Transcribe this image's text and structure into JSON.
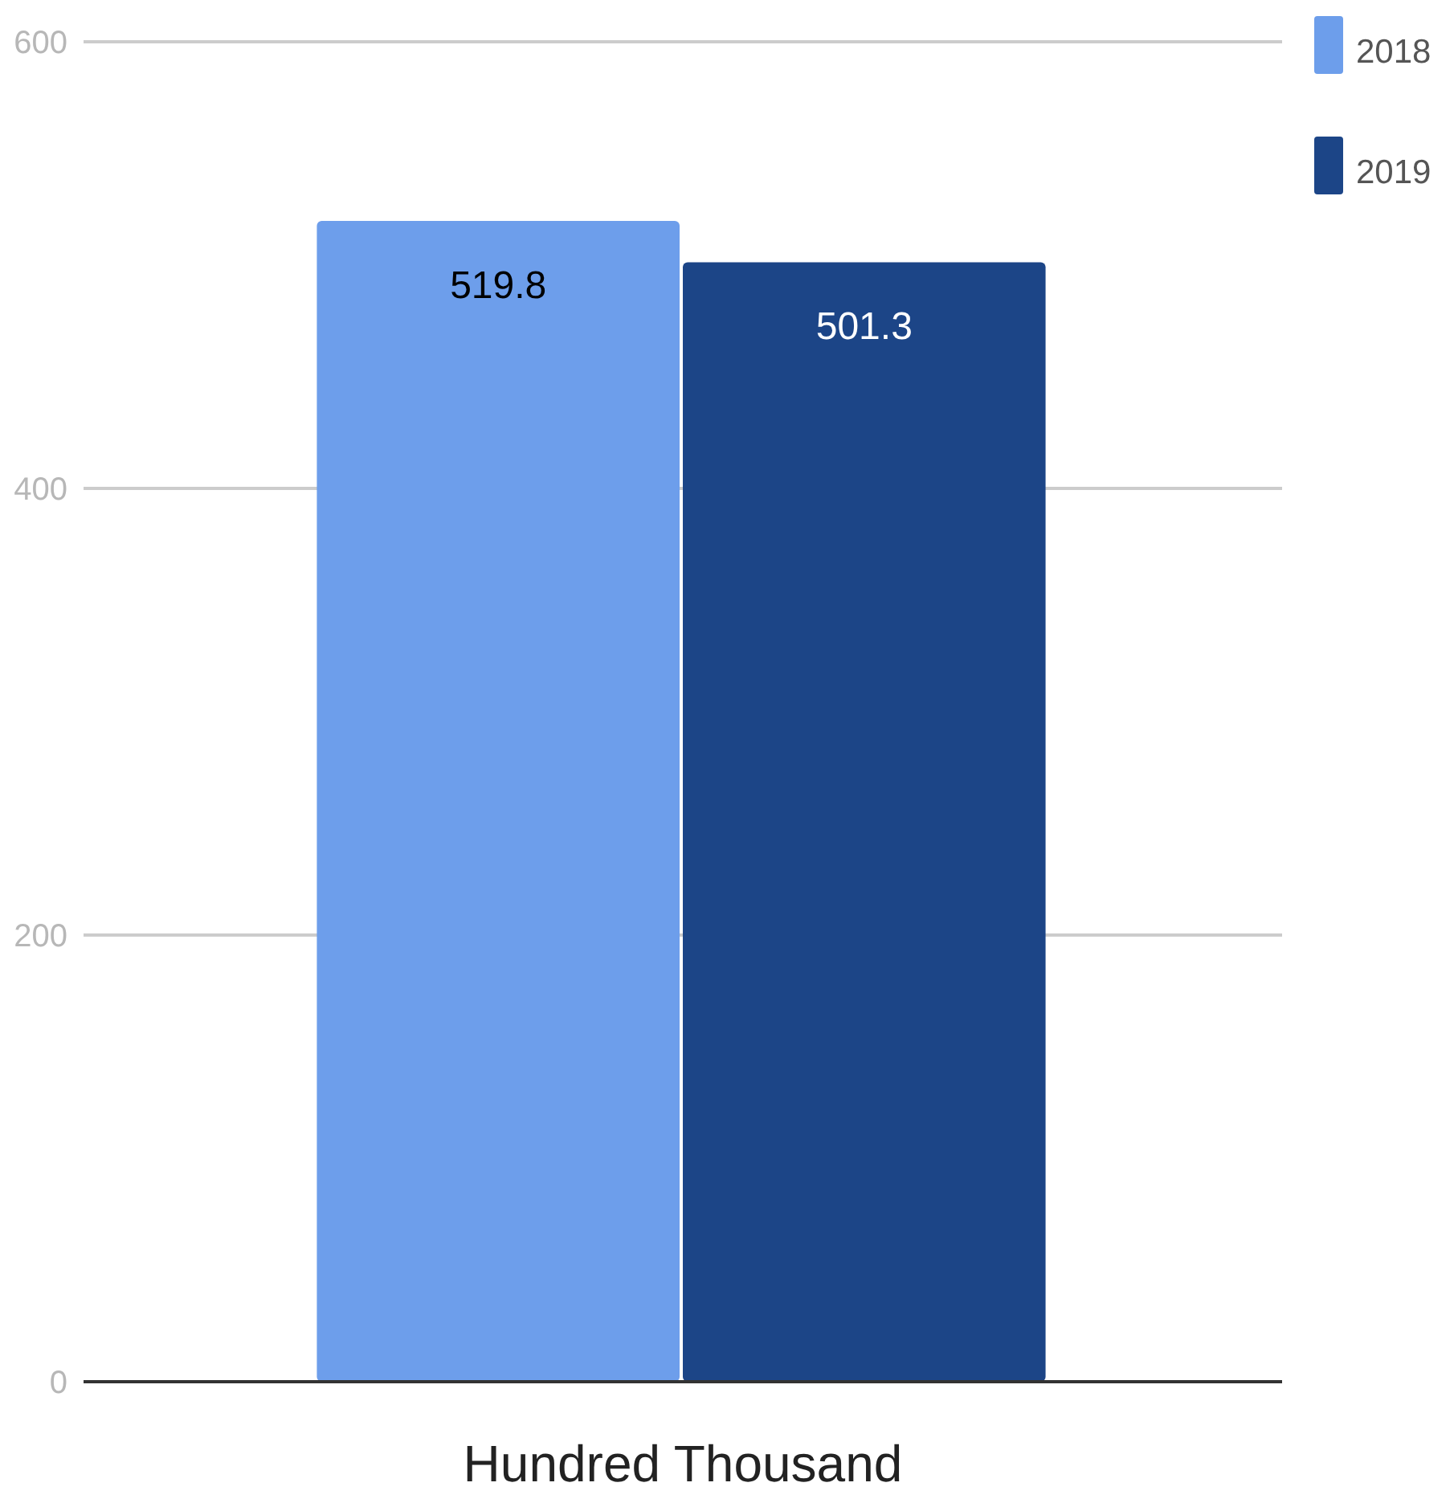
{
  "chart_data": {
    "type": "bar",
    "categories": [
      "Hundred Thousand"
    ],
    "series": [
      {
        "name": "2018",
        "color": "#6d9eeb",
        "values": [
          519.8
        ]
      },
      {
        "name": "2019",
        "color": "#1c4587",
        "values": [
          501.3
        ]
      }
    ],
    "ylim": [
      0,
      600
    ],
    "yticks": [
      0,
      200,
      400,
      600
    ],
    "grid": "y",
    "legend": "top right",
    "data_labels": true
  }
}
